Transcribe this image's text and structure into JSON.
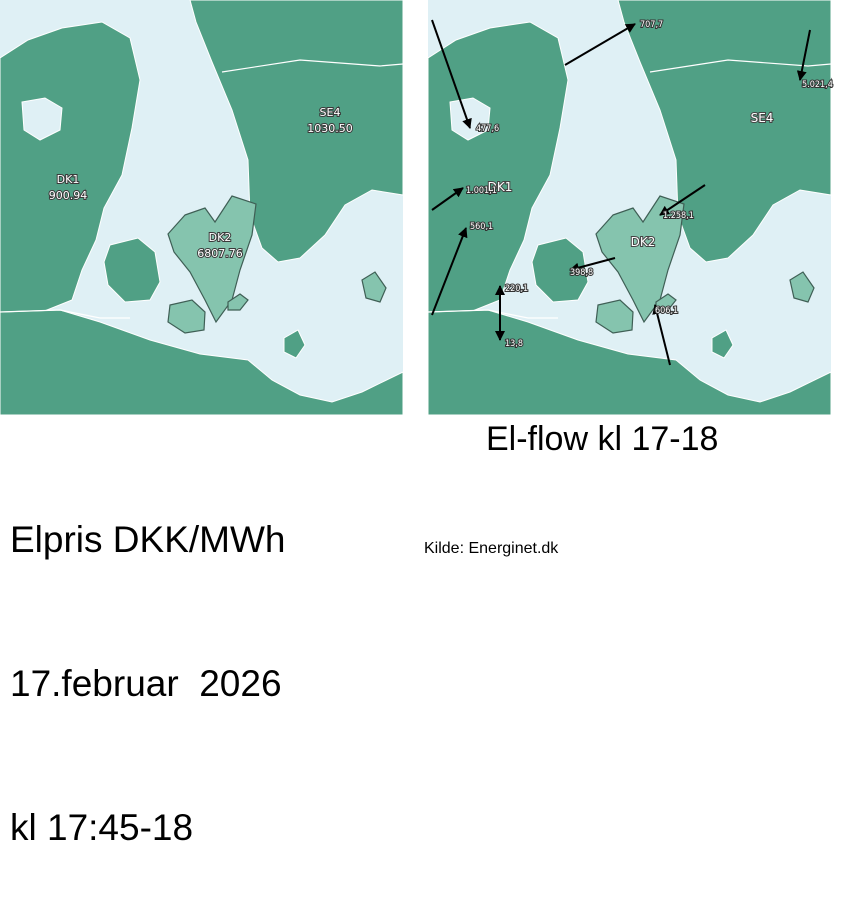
{
  "colors": {
    "sea": "#dff0f5",
    "land": "#50a085",
    "dk2": "#85c4ae",
    "border": "#ffffff",
    "arrow": "#000000"
  },
  "price_map": {
    "zones": [
      {
        "name": "DK1",
        "price": "900.94"
      },
      {
        "name": "SE4",
        "price": "1030.50"
      },
      {
        "name": "DK2",
        "price": "6807.76"
      }
    ]
  },
  "flow_map": {
    "zone_labels": [
      "DK1",
      "DK2",
      "SE4"
    ],
    "flows": [
      "477,6",
      "1.001,1",
      "560,1",
      "220,1",
      "13,8",
      "398,8",
      "1.258,1",
      "606,1",
      "707,7",
      "5.021,4"
    ]
  },
  "captions": {
    "price_title": "Elpris DKK/MWh",
    "price_date": "17.februar  2026",
    "price_time": "kl 17:45-18",
    "flow_title": "El-flow kl 17-18",
    "source": "Kilde: Energinet.dk"
  }
}
